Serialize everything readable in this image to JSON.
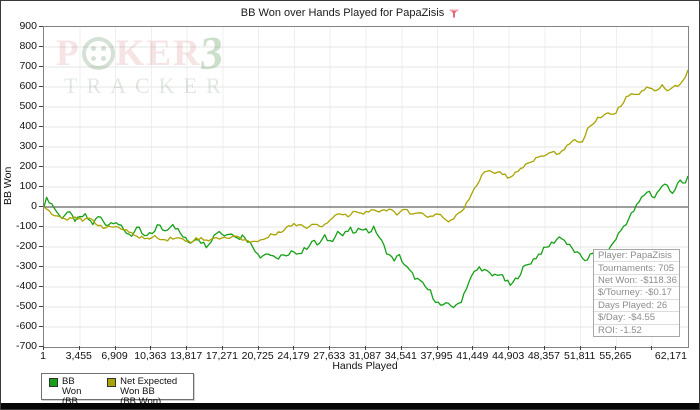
{
  "header": {
    "title": "BB Won over Hands Played for PapaZisis"
  },
  "icons": {
    "title_filter": "funnel-filter-icon"
  },
  "watermark": {
    "p": "P",
    "ker": "KER",
    "three": "3",
    "tracker": "TRACKER"
  },
  "chart_data": {
    "type": "line",
    "title": "BB Won over Hands Played for PapaZisis",
    "xlabel": "Hands Played",
    "ylabel": "BB Won",
    "xlim": [
      1,
      62171
    ],
    "ylim": [
      -700,
      900
    ],
    "y_tick_step": 100,
    "x_grid_step": 3454,
    "grid": true,
    "legend_position": "bottom-left",
    "zero_line": true,
    "x_ticks": [
      {
        "v": 1,
        "label": "1"
      },
      {
        "v": 3455,
        "label": "3,455"
      },
      {
        "v": 6909,
        "label": "6,909"
      },
      {
        "v": 10363,
        "label": "10,363"
      },
      {
        "v": 13817,
        "label": "13,817"
      },
      {
        "v": 17271,
        "label": "17,271"
      },
      {
        "v": 20725,
        "label": "20,725"
      },
      {
        "v": 24179,
        "label": "24,179"
      },
      {
        "v": 27633,
        "label": "27,633"
      },
      {
        "v": 31087,
        "label": "31,087"
      },
      {
        "v": 34541,
        "label": "34,541"
      },
      {
        "v": 37995,
        "label": "37,995"
      },
      {
        "v": 41449,
        "label": "41,449"
      },
      {
        "v": 44903,
        "label": "44,903"
      },
      {
        "v": 48357,
        "label": "48,357"
      },
      {
        "v": 51811,
        "label": "51,811"
      },
      {
        "v": 55265,
        "label": "55,265"
      },
      {
        "v": 62171,
        "label": "62,171"
      }
    ],
    "series": [
      {
        "name": "BB Won",
        "sub": "(BB Won)",
        "color": "#15a015",
        "noise_bb": 13,
        "points": [
          [
            1,
            0
          ],
          [
            300,
            45
          ],
          [
            900,
            5
          ],
          [
            1600,
            -55
          ],
          [
            2300,
            -25
          ],
          [
            3100,
            -70
          ],
          [
            3900,
            -40
          ],
          [
            4700,
            -85
          ],
          [
            5300,
            -45
          ],
          [
            6100,
            -90
          ],
          [
            6900,
            -65
          ],
          [
            7700,
            -120
          ],
          [
            8500,
            -140
          ],
          [
            9100,
            -105
          ],
          [
            9700,
            -150
          ],
          [
            10400,
            -135
          ],
          [
            11000,
            -90
          ],
          [
            11700,
            -120
          ],
          [
            12400,
            -80
          ],
          [
            13200,
            -135
          ],
          [
            14000,
            -180
          ],
          [
            14800,
            -150
          ],
          [
            15600,
            -195
          ],
          [
            16200,
            -160
          ],
          [
            16800,
            -115
          ],
          [
            17500,
            -145
          ],
          [
            18100,
            -120
          ],
          [
            18700,
            -160
          ],
          [
            19300,
            -140
          ],
          [
            20100,
            -195
          ],
          [
            20900,
            -245
          ],
          [
            21700,
            -230
          ],
          [
            22300,
            -265
          ],
          [
            22900,
            -240
          ],
          [
            23500,
            -255
          ],
          [
            24100,
            -215
          ],
          [
            24700,
            -235
          ],
          [
            25300,
            -205
          ],
          [
            25900,
            -170
          ],
          [
            26500,
            -190
          ],
          [
            27100,
            -150
          ],
          [
            27700,
            -175
          ],
          [
            28300,
            -120
          ],
          [
            28900,
            -145
          ],
          [
            29500,
            -110
          ],
          [
            30100,
            -135
          ],
          [
            30700,
            -95
          ],
          [
            31300,
            -125
          ],
          [
            31900,
            -105
          ],
          [
            32500,
            -165
          ],
          [
            33100,
            -225
          ],
          [
            33700,
            -265
          ],
          [
            34300,
            -245
          ],
          [
            34900,
            -295
          ],
          [
            35500,
            -335
          ],
          [
            36100,
            -365
          ],
          [
            36700,
            -395
          ],
          [
            37300,
            -425
          ],
          [
            37900,
            -475
          ],
          [
            38500,
            -500
          ],
          [
            39100,
            -480
          ],
          [
            39700,
            -505
          ],
          [
            40300,
            -465
          ],
          [
            40900,
            -385
          ],
          [
            41500,
            -330
          ],
          [
            42100,
            -300
          ],
          [
            42700,
            -325
          ],
          [
            43300,
            -345
          ],
          [
            43900,
            -330
          ],
          [
            44500,
            -365
          ],
          [
            45100,
            -395
          ],
          [
            45700,
            -350
          ],
          [
            46300,
            -305
          ],
          [
            46900,
            -280
          ],
          [
            47500,
            -250
          ],
          [
            48100,
            -220
          ],
          [
            48700,
            -195
          ],
          [
            49300,
            -170
          ],
          [
            49900,
            -145
          ],
          [
            50500,
            -185
          ],
          [
            51100,
            -215
          ],
          [
            51700,
            -245
          ],
          [
            52300,
            -265
          ],
          [
            52900,
            -235
          ],
          [
            53500,
            -265
          ],
          [
            54100,
            -240
          ],
          [
            54700,
            -200
          ],
          [
            55300,
            -150
          ],
          [
            55900,
            -100
          ],
          [
            56500,
            -55
          ],
          [
            57100,
            -5
          ],
          [
            57700,
            45
          ],
          [
            58300,
            85
          ],
          [
            58900,
            45
          ],
          [
            59500,
            95
          ],
          [
            60100,
            115
          ],
          [
            60700,
            70
          ],
          [
            61300,
            125
          ],
          [
            61900,
            115
          ],
          [
            62171,
            155
          ]
        ]
      },
      {
        "name": "Net Expected Won BB",
        "sub": "(BB Won)",
        "color": "#a9a400",
        "noise_bb": 9,
        "points": [
          [
            1,
            0
          ],
          [
            600,
            -25
          ],
          [
            1300,
            -45
          ],
          [
            2100,
            -60
          ],
          [
            2900,
            -45
          ],
          [
            3700,
            -70
          ],
          [
            4500,
            -60
          ],
          [
            5300,
            -90
          ],
          [
            6100,
            -105
          ],
          [
            6900,
            -95
          ],
          [
            7700,
            -115
          ],
          [
            8500,
            -135
          ],
          [
            9300,
            -150
          ],
          [
            10100,
            -160
          ],
          [
            10900,
            -148
          ],
          [
            11700,
            -165
          ],
          [
            12500,
            -152
          ],
          [
            13300,
            -162
          ],
          [
            14100,
            -172
          ],
          [
            14900,
            -155
          ],
          [
            15700,
            -168
          ],
          [
            16500,
            -150
          ],
          [
            17300,
            -162
          ],
          [
            18100,
            -145
          ],
          [
            18900,
            -155
          ],
          [
            19700,
            -168
          ],
          [
            20500,
            -175
          ],
          [
            21300,
            -158
          ],
          [
            22100,
            -138
          ],
          [
            22900,
            -118
          ],
          [
            23700,
            -95
          ],
          [
            24500,
            -85
          ],
          [
            25300,
            -102
          ],
          [
            26100,
            -80
          ],
          [
            26900,
            -95
          ],
          [
            27700,
            -58
          ],
          [
            28500,
            -30
          ],
          [
            29300,
            -48
          ],
          [
            30100,
            -15
          ],
          [
            30900,
            -32
          ],
          [
            31700,
            -10
          ],
          [
            32500,
            -28
          ],
          [
            33300,
            -12
          ],
          [
            34100,
            -32
          ],
          [
            34900,
            -15
          ],
          [
            35700,
            -42
          ],
          [
            36500,
            -28
          ],
          [
            37300,
            -52
          ],
          [
            38100,
            -35
          ],
          [
            38900,
            -72
          ],
          [
            39700,
            -50
          ],
          [
            40500,
            -15
          ],
          [
            41100,
            45
          ],
          [
            41700,
            105
          ],
          [
            42300,
            160
          ],
          [
            42900,
            185
          ],
          [
            43500,
            165
          ],
          [
            44100,
            175
          ],
          [
            44700,
            148
          ],
          [
            45300,
            162
          ],
          [
            45900,
            188
          ],
          [
            46500,
            208
          ],
          [
            47100,
            232
          ],
          [
            47700,
            248
          ],
          [
            48300,
            262
          ],
          [
            48900,
            278
          ],
          [
            49500,
            262
          ],
          [
            50100,
            292
          ],
          [
            50700,
            312
          ],
          [
            51300,
            332
          ],
          [
            51900,
            322
          ],
          [
            52500,
            392
          ],
          [
            53100,
            422
          ],
          [
            53700,
            452
          ],
          [
            54300,
            472
          ],
          [
            54900,
            462
          ],
          [
            55500,
            492
          ],
          [
            56100,
            542
          ],
          [
            56700,
            572
          ],
          [
            57300,
            562
          ],
          [
            57900,
            588
          ],
          [
            58500,
            602
          ],
          [
            59100,
            582
          ],
          [
            59700,
            608
          ],
          [
            60300,
            578
          ],
          [
            60900,
            602
          ],
          [
            61500,
            622
          ],
          [
            61900,
            645
          ],
          [
            62171,
            685
          ]
        ]
      }
    ]
  },
  "info_box": {
    "rows": [
      "Player: PapaZisis",
      "Tournaments: 705",
      "Net Won: -$118.36",
      "$/Tourney: -$0.17",
      "Days Played: 26",
      "$/Day: -$4.55",
      "ROI: -1.52"
    ]
  },
  "colors": {
    "bb_won_line": "#15a015",
    "net_expected_line": "#a9a400",
    "grid_horizontal": "#e4e4e4",
    "grid_vertical": "#efefef",
    "zero_line": "#3c3c3c",
    "plot_border": "#828282",
    "info_text": "#8c8c8c",
    "filter_icon_red": "#d94f5c"
  }
}
